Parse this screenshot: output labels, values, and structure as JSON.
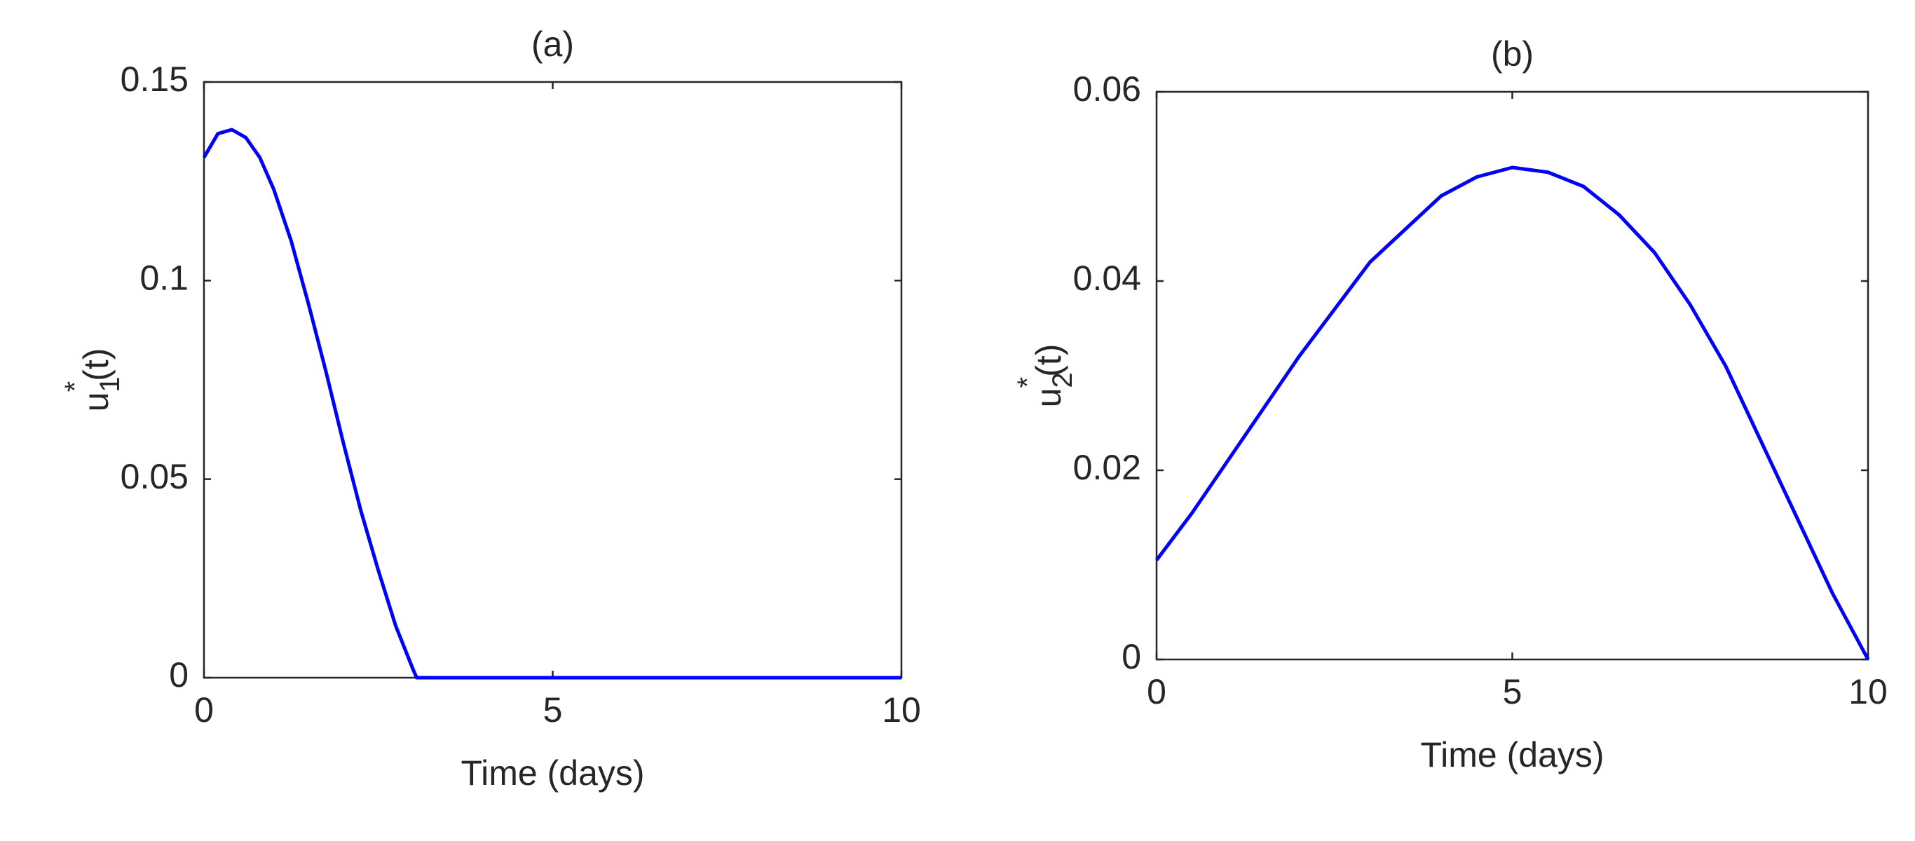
{
  "chart_data": [
    {
      "type": "line",
      "title": "(a)",
      "xlabel": "Time (days)",
      "ylabel": {
        "base": "u",
        "sub": "1",
        "sup": "*",
        "rest": "(t)"
      },
      "x": [
        0,
        0.2,
        0.4,
        0.6,
        0.8,
        1.0,
        1.25,
        1.5,
        1.75,
        2.0,
        2.25,
        2.5,
        2.75,
        3.0,
        3.05,
        4,
        5,
        6,
        7,
        8,
        9,
        10
      ],
      "series": [
        {
          "color": "#0000ff",
          "values": [
            0.131,
            0.137,
            0.138,
            0.136,
            0.131,
            0.123,
            0.11,
            0.094,
            0.077,
            0.059,
            0.042,
            0.027,
            0.013,
            0.002,
            0,
            0,
            0,
            0,
            0,
            0,
            0,
            0
          ]
        }
      ],
      "xlim": [
        0,
        10
      ],
      "xticks": [
        0,
        5,
        10
      ],
      "ylim": [
        0,
        0.15
      ],
      "yticks": [
        0,
        0.05,
        0.1,
        0.15
      ]
    },
    {
      "type": "line",
      "title": "(b)",
      "xlabel": "Time (days)",
      "ylabel": {
        "base": "u",
        "sub": "2",
        "sup": "*",
        "rest": "(t)"
      },
      "x": [
        0,
        0.5,
        1,
        1.5,
        2,
        2.5,
        3,
        3.5,
        4,
        4.5,
        5,
        5.5,
        6,
        6.5,
        7,
        7.5,
        8,
        8.5,
        9,
        9.5,
        10
      ],
      "series": [
        {
          "color": "#0000ff",
          "values": [
            0.0105,
            0.0155,
            0.021,
            0.0265,
            0.032,
            0.037,
            0.042,
            0.0455,
            0.049,
            0.051,
            0.052,
            0.0515,
            0.05,
            0.047,
            0.043,
            0.0375,
            0.031,
            0.023,
            0.015,
            0.007,
            0
          ]
        }
      ],
      "xlim": [
        0,
        10
      ],
      "xticks": [
        0,
        5,
        10
      ],
      "ylim": [
        0,
        0.06
      ],
      "yticks": [
        0,
        0.02,
        0.04,
        0.06
      ]
    }
  ]
}
